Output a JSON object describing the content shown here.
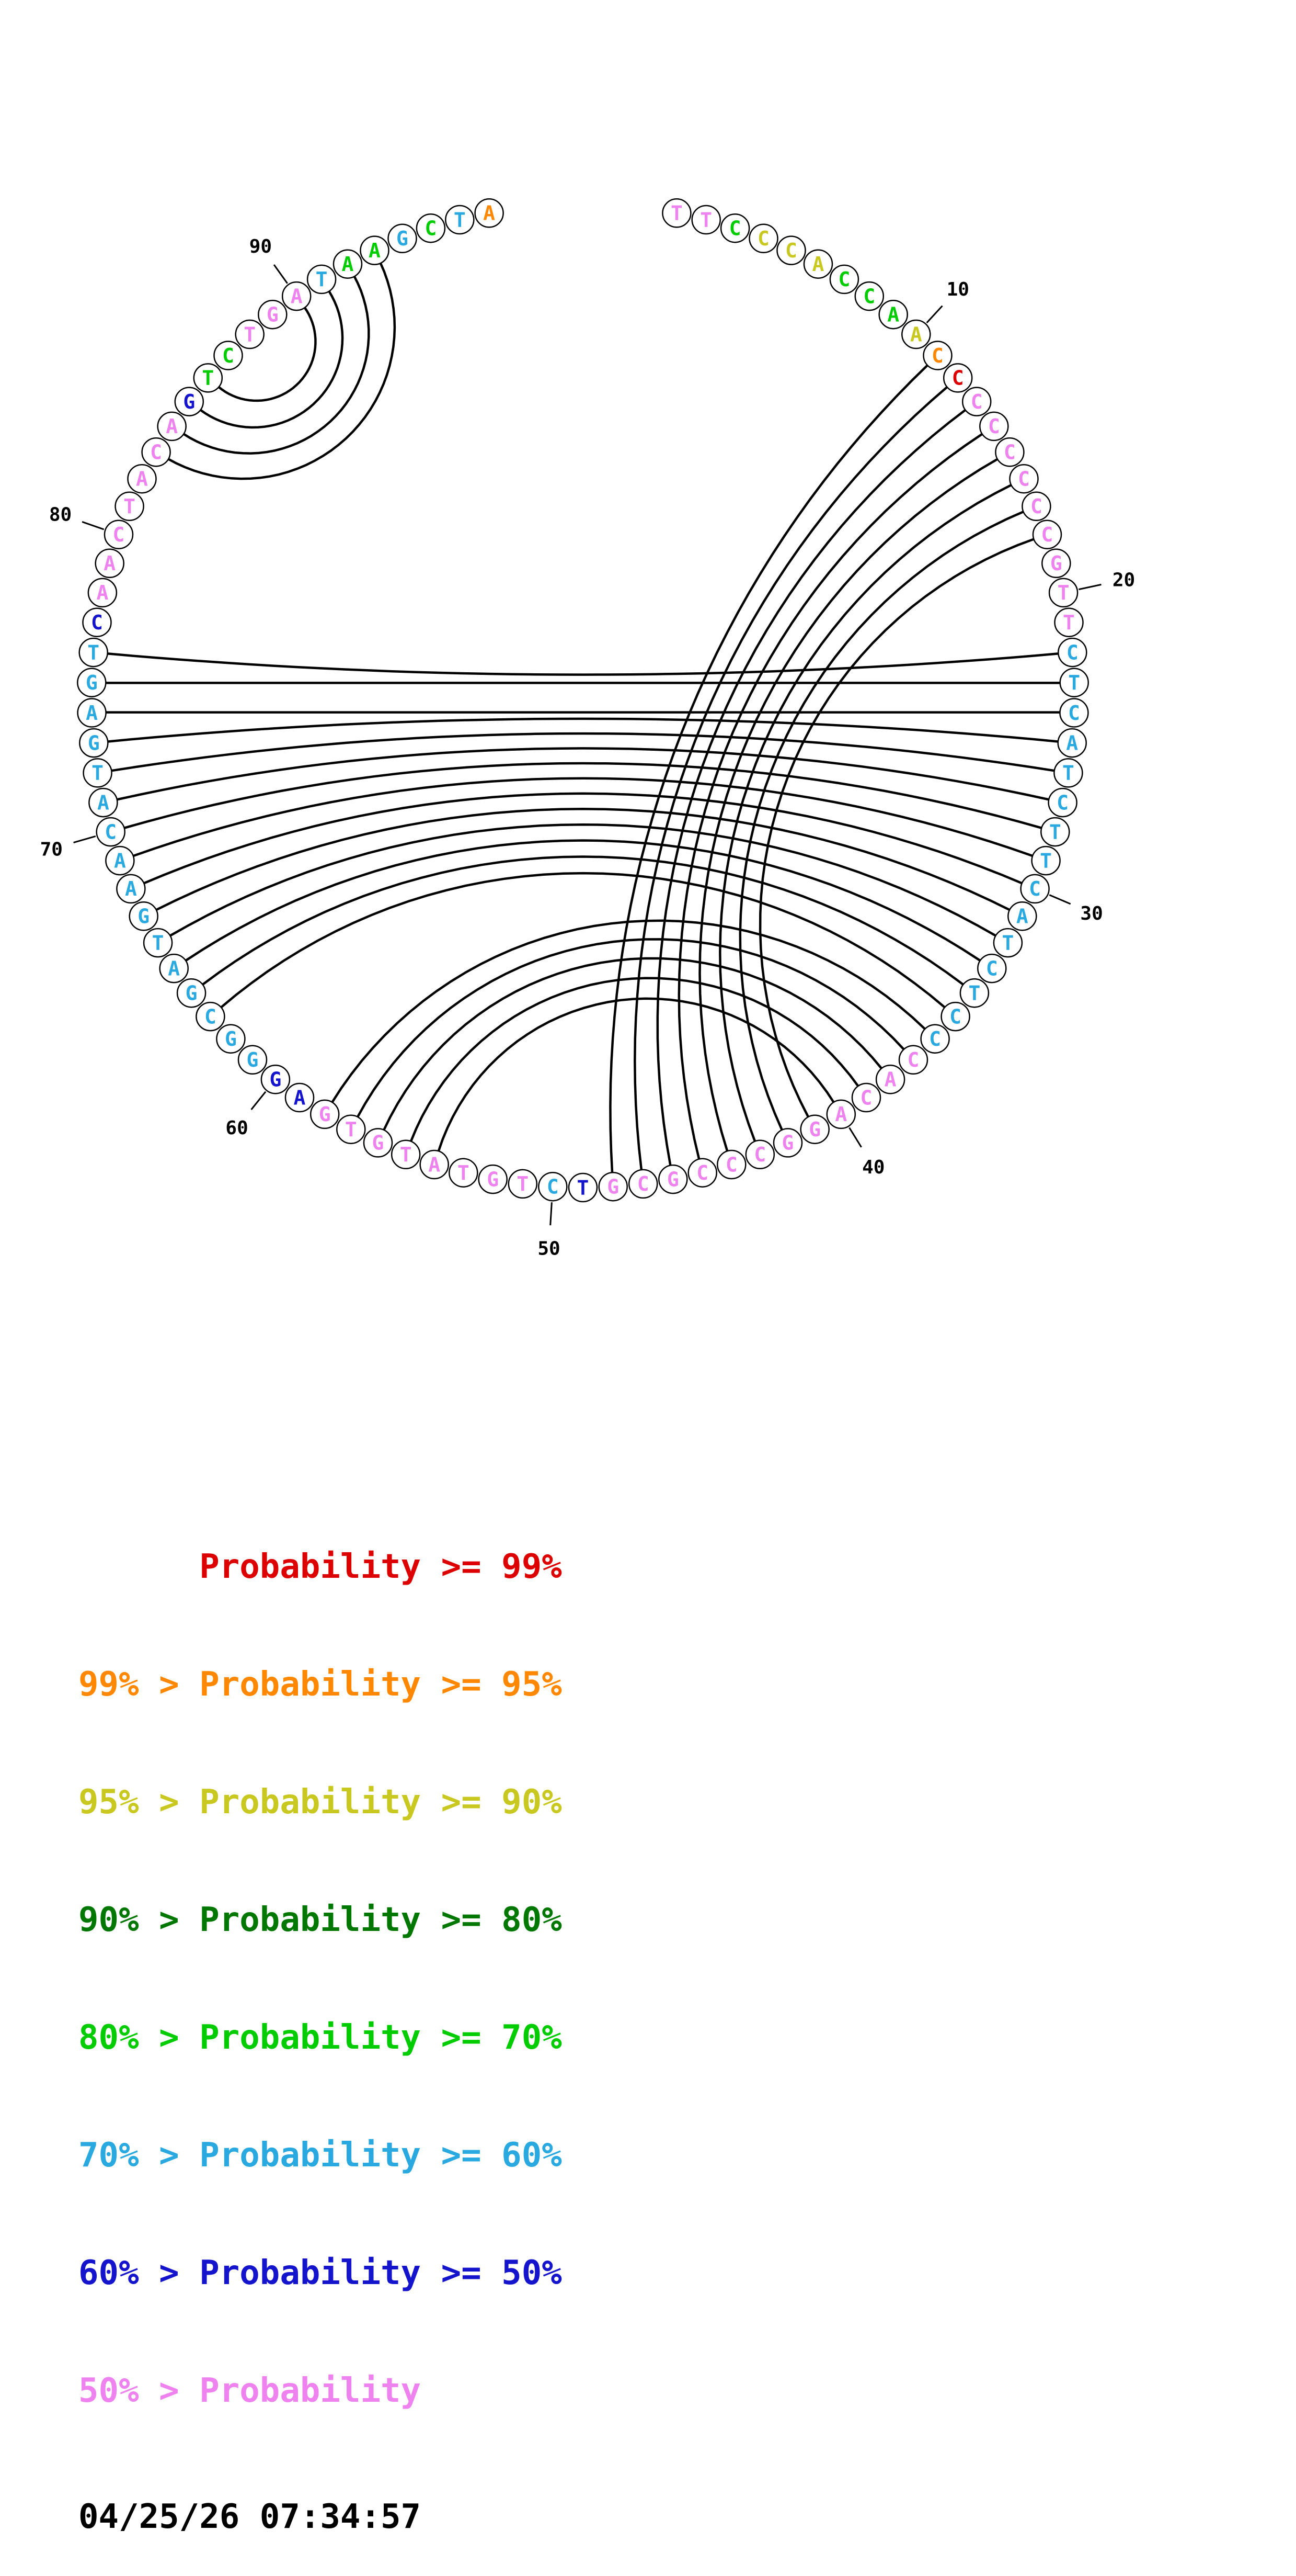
{
  "plot": {
    "bases": "TTCCCACCAACCCCCCCCGTTCTCATCTTCATCTCCCACAGGCCCGCGTCTGTATGTGAGGGCGATGAACATGAGTCAACTACAGTCTGATAAGCTA",
    "color_codes": "VVGYYYGGGYORVVVVVVVVVLLLLLLLLLLLLLLLVVVVVVVVVVVVBLVVVVVVVVBBLLLLLLLLLLLLLLLLBVVVVVVVBGGVVVLGGLGLO",
    "color_map": {
      "R": "#dd0000",
      "O": "#ff8800",
      "Y": "#c8c820",
      "D": "#007700",
      "G": "#00cc00",
      "L": "#29a9e0",
      "B": "#1414cc",
      "V": "#ee82ee",
      "K": "#000000"
    },
    "pairs": [
      [
        11,
        48
      ],
      [
        12,
        47
      ],
      [
        13,
        46
      ],
      [
        14,
        45
      ],
      [
        15,
        44
      ],
      [
        16,
        43
      ],
      [
        17,
        42
      ],
      [
        18,
        41
      ],
      [
        22,
        76
      ],
      [
        23,
        75
      ],
      [
        24,
        74
      ],
      [
        25,
        73
      ],
      [
        26,
        72
      ],
      [
        27,
        71
      ],
      [
        28,
        70
      ],
      [
        29,
        69
      ],
      [
        30,
        68
      ],
      [
        31,
        67
      ],
      [
        32,
        66
      ],
      [
        33,
        65
      ],
      [
        34,
        64
      ],
      [
        35,
        63
      ],
      [
        36,
        58
      ],
      [
        37,
        57
      ],
      [
        38,
        56
      ],
      [
        39,
        55
      ],
      [
        40,
        54
      ],
      [
        83,
        93
      ],
      [
        84,
        92
      ],
      [
        85,
        91
      ],
      [
        86,
        90
      ]
    ],
    "ticks": [
      "10",
      "20",
      "30",
      "40",
      "50",
      "60",
      "70",
      "80",
      "90"
    ],
    "arc_color": "#000000",
    "circle_outline_color": "#000000"
  },
  "legend": {
    "lines": [
      {
        "text": "      Probability >= 99%",
        "color_key": "R"
      },
      {
        "text": "99% > Probability >= 95%",
        "color_key": "O"
      },
      {
        "text": "95% > Probability >= 90%",
        "color_key": "Y"
      },
      {
        "text": "90% > Probability >= 80%",
        "color_key": "D"
      },
      {
        "text": "80% > Probability >= 70%",
        "color_key": "G"
      },
      {
        "text": "70% > Probability >= 60%",
        "color_key": "L"
      },
      {
        "text": "60% > Probability >= 50%",
        "color_key": "B"
      },
      {
        "text": "50% > Probability",
        "color_key": "V"
      }
    ],
    "timestamp": "04/25/26 07:34:57"
  }
}
